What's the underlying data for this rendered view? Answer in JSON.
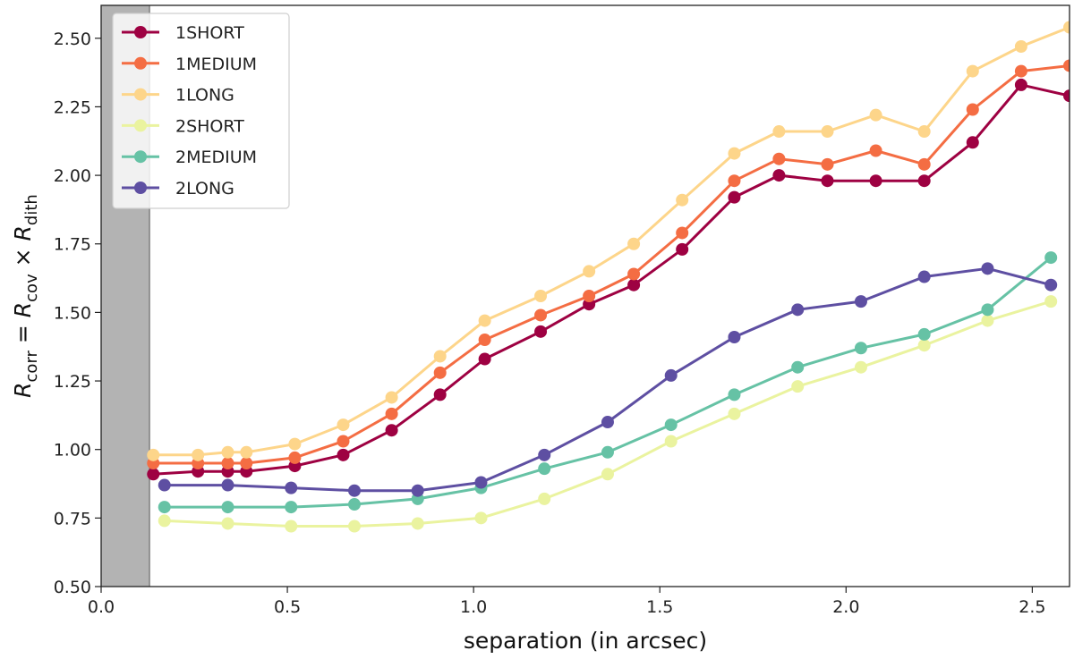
{
  "chart_data": {
    "type": "line",
    "title": "",
    "xlabel": "separation (in arcsec)",
    "ylabel": {
      "main_1": "R",
      "sub_1": "corr",
      "equals": " = ",
      "main_2": "R",
      "sub_2": "cov",
      "times": " × ",
      "main_3": "R",
      "sub_3": "dith"
    },
    "xlim": [
      0.0,
      2.6
    ],
    "ylim": [
      0.5,
      2.62
    ],
    "xticks": [
      "0.0",
      "0.5",
      "1.0",
      "1.5",
      "2.0",
      "2.5"
    ],
    "yticks": [
      "0.50",
      "0.75",
      "1.00",
      "1.25",
      "1.50",
      "1.75",
      "2.00",
      "2.25",
      "2.50"
    ],
    "shaded_region": {
      "x0": 0.0,
      "x1": 0.13,
      "color": "#b3b3b3"
    },
    "legend_position": "upper-left",
    "series": [
      {
        "name": "1SHORT",
        "color": "#9e0142",
        "x": [
          0.14,
          0.26,
          0.34,
          0.39,
          0.52,
          0.65,
          0.78,
          0.91,
          1.03,
          1.18,
          1.31,
          1.43,
          1.56,
          1.7,
          1.82,
          1.95,
          2.08,
          2.21,
          2.34,
          2.47,
          2.6
        ],
        "y": [
          0.91,
          0.92,
          0.92,
          0.92,
          0.94,
          0.98,
          1.07,
          1.2,
          1.33,
          1.43,
          1.53,
          1.6,
          1.73,
          1.92,
          2.0,
          1.98,
          1.98,
          1.98,
          2.12,
          2.33,
          2.29
        ]
      },
      {
        "name": "1MEDIUM",
        "color": "#f46d43",
        "x": [
          0.14,
          0.26,
          0.34,
          0.39,
          0.52,
          0.65,
          0.78,
          0.91,
          1.03,
          1.18,
          1.31,
          1.43,
          1.56,
          1.7,
          1.82,
          1.95,
          2.08,
          2.21,
          2.34,
          2.47,
          2.6
        ],
        "y": [
          0.95,
          0.95,
          0.95,
          0.95,
          0.97,
          1.03,
          1.13,
          1.28,
          1.4,
          1.49,
          1.56,
          1.64,
          1.79,
          1.98,
          2.06,
          2.04,
          2.09,
          2.04,
          2.24,
          2.38,
          2.4
        ]
      },
      {
        "name": "1LONG",
        "color": "#fdd58a",
        "x": [
          0.14,
          0.26,
          0.34,
          0.39,
          0.52,
          0.65,
          0.78,
          0.91,
          1.03,
          1.18,
          1.31,
          1.43,
          1.56,
          1.7,
          1.82,
          1.95,
          2.08,
          2.21,
          2.34,
          2.47,
          2.6
        ],
        "y": [
          0.98,
          0.98,
          0.99,
          0.99,
          1.02,
          1.09,
          1.19,
          1.34,
          1.47,
          1.56,
          1.65,
          1.75,
          1.91,
          2.08,
          2.16,
          2.16,
          2.22,
          2.16,
          2.38,
          2.47,
          2.54
        ]
      },
      {
        "name": "2SHORT",
        "color": "#eaf39f",
        "x": [
          0.17,
          0.34,
          0.51,
          0.68,
          0.85,
          1.02,
          1.19,
          1.36,
          1.53,
          1.7,
          1.87,
          2.04,
          2.21,
          2.38,
          2.55
        ],
        "y": [
          0.74,
          0.73,
          0.72,
          0.72,
          0.73,
          0.75,
          0.82,
          0.91,
          1.03,
          1.13,
          1.23,
          1.3,
          1.38,
          1.47,
          1.54
        ]
      },
      {
        "name": "2MEDIUM",
        "color": "#66c2a5",
        "x": [
          0.17,
          0.34,
          0.51,
          0.68,
          0.85,
          1.02,
          1.19,
          1.36,
          1.53,
          1.7,
          1.87,
          2.04,
          2.21,
          2.38,
          2.55
        ],
        "y": [
          0.79,
          0.79,
          0.79,
          0.8,
          0.82,
          0.86,
          0.93,
          0.99,
          1.09,
          1.2,
          1.3,
          1.37,
          1.42,
          1.51,
          1.7
        ]
      },
      {
        "name": "2LONG",
        "color": "#5e4fa2",
        "x": [
          0.17,
          0.34,
          0.51,
          0.68,
          0.85,
          1.02,
          1.19,
          1.36,
          1.53,
          1.7,
          1.87,
          2.04,
          2.21,
          2.38,
          2.55
        ],
        "y": [
          0.87,
          0.87,
          0.86,
          0.85,
          0.85,
          0.88,
          0.98,
          1.1,
          1.27,
          1.41,
          1.51,
          1.54,
          1.63,
          1.66,
          1.6
        ]
      }
    ]
  }
}
